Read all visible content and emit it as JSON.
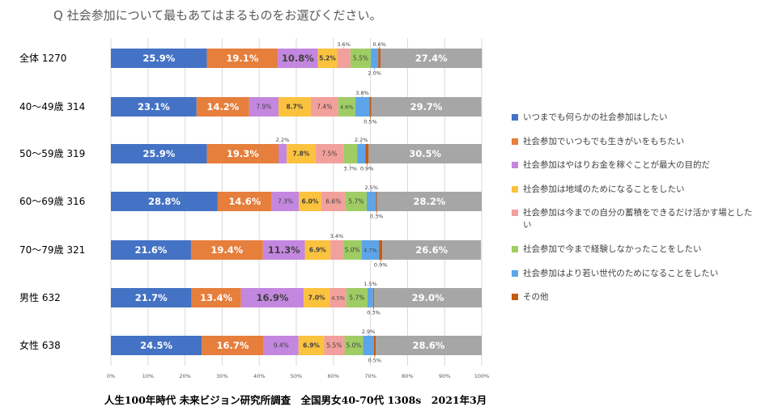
{
  "title": "Q 社会参加について最もあてはまるものをお選びください。",
  "footer": "人生100年時代 未来ビジョン研究所調査　全国男女40-70代 1308s　2021年3月",
  "chart_data": {
    "type": "bar",
    "orientation": "horizontal-stacked-100",
    "title": "Q 社会参加について最もあてはまるものをお選びください。",
    "categories": [
      "全体 1270",
      "40～49歳 314",
      "50～59歳 319",
      "60～69歳 316",
      "70～79歳 321",
      "男性 632",
      "女性 638"
    ],
    "xlim": [
      0,
      100
    ],
    "xticks": [
      "0%",
      "10%",
      "20%",
      "30%",
      "40%",
      "50%",
      "60%",
      "70%",
      "80%",
      "90%",
      "100%"
    ],
    "grid": true,
    "legend_position": "right",
    "series": [
      {
        "name": "いつまでも何らかの社会参加はしたい",
        "color": "#4472C4",
        "values": [
          25.9,
          23.1,
          25.9,
          28.8,
          21.6,
          21.7,
          24.5
        ]
      },
      {
        "name": "社会参加でいつもでも生きがいをもちたい",
        "color": "#E67E3C",
        "values": [
          19.1,
          14.2,
          19.3,
          14.6,
          19.4,
          13.4,
          16.7
        ]
      },
      {
        "name": "社会参加はやはりお金を稼ぐことが最大の目的だ",
        "color": "#C387DF",
        "values": [
          10.8,
          7.9,
          2.2,
          7.3,
          11.3,
          16.9,
          9.4
        ]
      },
      {
        "name": "社会参加は地域のためになることをしたい",
        "color": "#FBC23E",
        "values": [
          5.2,
          8.7,
          7.8,
          6.0,
          6.9,
          7.0,
          6.9
        ]
      },
      {
        "name": "社会参加は今までの自分の蓄積をできるだけ活かす場としたい",
        "color": "#F2A09C",
        "values": [
          3.6,
          7.4,
          7.5,
          6.6,
          3.4,
          4.5,
          5.5
        ]
      },
      {
        "name": "社会参加で今まで経験しなかったことをしたい",
        "color": "#9FCD64",
        "values": [
          5.5,
          4.6,
          3.7,
          5.7,
          5.0,
          5.7,
          5.0
        ]
      },
      {
        "name": "社会参加はより若い世代のためになることをしたい",
        "color": "#5DA5E8",
        "values": [
          2.0,
          3.8,
          2.2,
          2.5,
          4.7,
          1.5,
          2.9
        ]
      },
      {
        "name": "その他",
        "color": "#C55A11",
        "values": [
          0.6,
          0.5,
          0.9,
          0.3,
          0.9,
          0.3,
          0.5
        ]
      },
      {
        "name": "",
        "color": "#A6A6A6",
        "values": [
          27.4,
          29.7,
          30.5,
          28.2,
          26.6,
          29.0,
          28.6
        ]
      }
    ]
  }
}
